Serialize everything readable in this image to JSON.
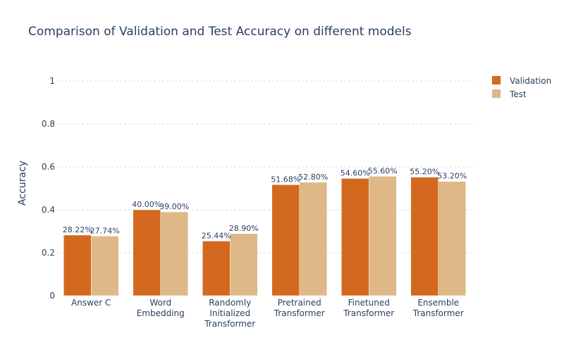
{
  "chart_data": {
    "type": "bar",
    "title": "Comparison of Validation and Test Accuracy on different models",
    "xlabel": "",
    "ylabel": "Accuracy",
    "ylim": [
      0,
      1.0
    ],
    "yticks": [
      0,
      0.2,
      0.4,
      0.6,
      0.8,
      1
    ],
    "ytick_labels": [
      "0",
      "0.2",
      "0.4",
      "0.6",
      "0.8",
      "1"
    ],
    "categories": [
      [
        "Answer C"
      ],
      [
        "Word",
        "Embedding"
      ],
      [
        "Randomly",
        "Initialized",
        "Transformer"
      ],
      [
        "Pretrained",
        "Transformer"
      ],
      [
        "Finetuned",
        "Transformer"
      ],
      [
        "Ensemble",
        "Transformer"
      ]
    ],
    "series": [
      {
        "name": "Validation",
        "color": "#D2691E",
        "values": [
          0.2822,
          0.4,
          0.2544,
          0.5168,
          0.546,
          0.552
        ],
        "labels": [
          "28.22%",
          "40.00%",
          "25.44%",
          "51.68%",
          "54.60%",
          "55.20%"
        ]
      },
      {
        "name": "Test",
        "color": "#DEB887",
        "values": [
          0.2774,
          0.39,
          0.289,
          0.528,
          0.556,
          0.532
        ],
        "labels": [
          "27.74%",
          "39.00%",
          "28.90%",
          "52.80%",
          "55.60%",
          "53.20%"
        ]
      }
    ],
    "grid": true,
    "legend_position": "top-right"
  }
}
